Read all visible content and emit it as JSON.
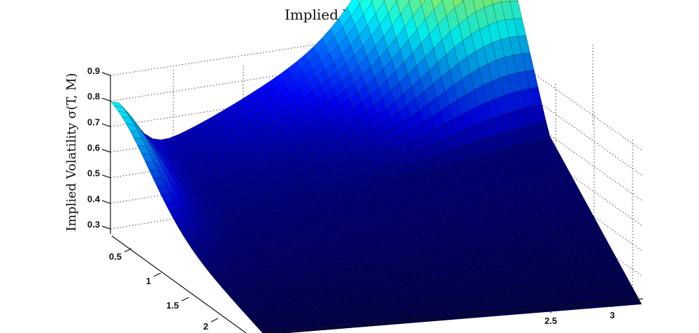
{
  "chart_data": {
    "type": "surface",
    "title": "Implied Volatility Surface",
    "zlabel": "Implied Volatility σ(T, M)",
    "xlabel": "",
    "ylabel": "",
    "z_ticks": [
      "0.3",
      "0.4",
      "0.5",
      "0.6",
      "0.7",
      "0.8",
      "0.9"
    ],
    "z_range": [
      0.25,
      0.95
    ],
    "left_axis_ticks": [
      "0.5",
      "1",
      "1.5",
      "2"
    ],
    "right_axis_ticks": [
      "2.5",
      "3"
    ],
    "colormap": "jet",
    "grid": true,
    "surface_samples": [
      {
        "left_axis": 0.5,
        "right_axis": 0.0,
        "z": 0.51
      },
      {
        "left_axis": 2.0,
        "right_axis": 0.0,
        "z": 0.27
      },
      {
        "left_axis": 2.0,
        "right_axis": 3.0,
        "z": 0.25
      },
      {
        "left_axis": 0.5,
        "right_axis": 3.0,
        "z": 0.93
      }
    ]
  }
}
